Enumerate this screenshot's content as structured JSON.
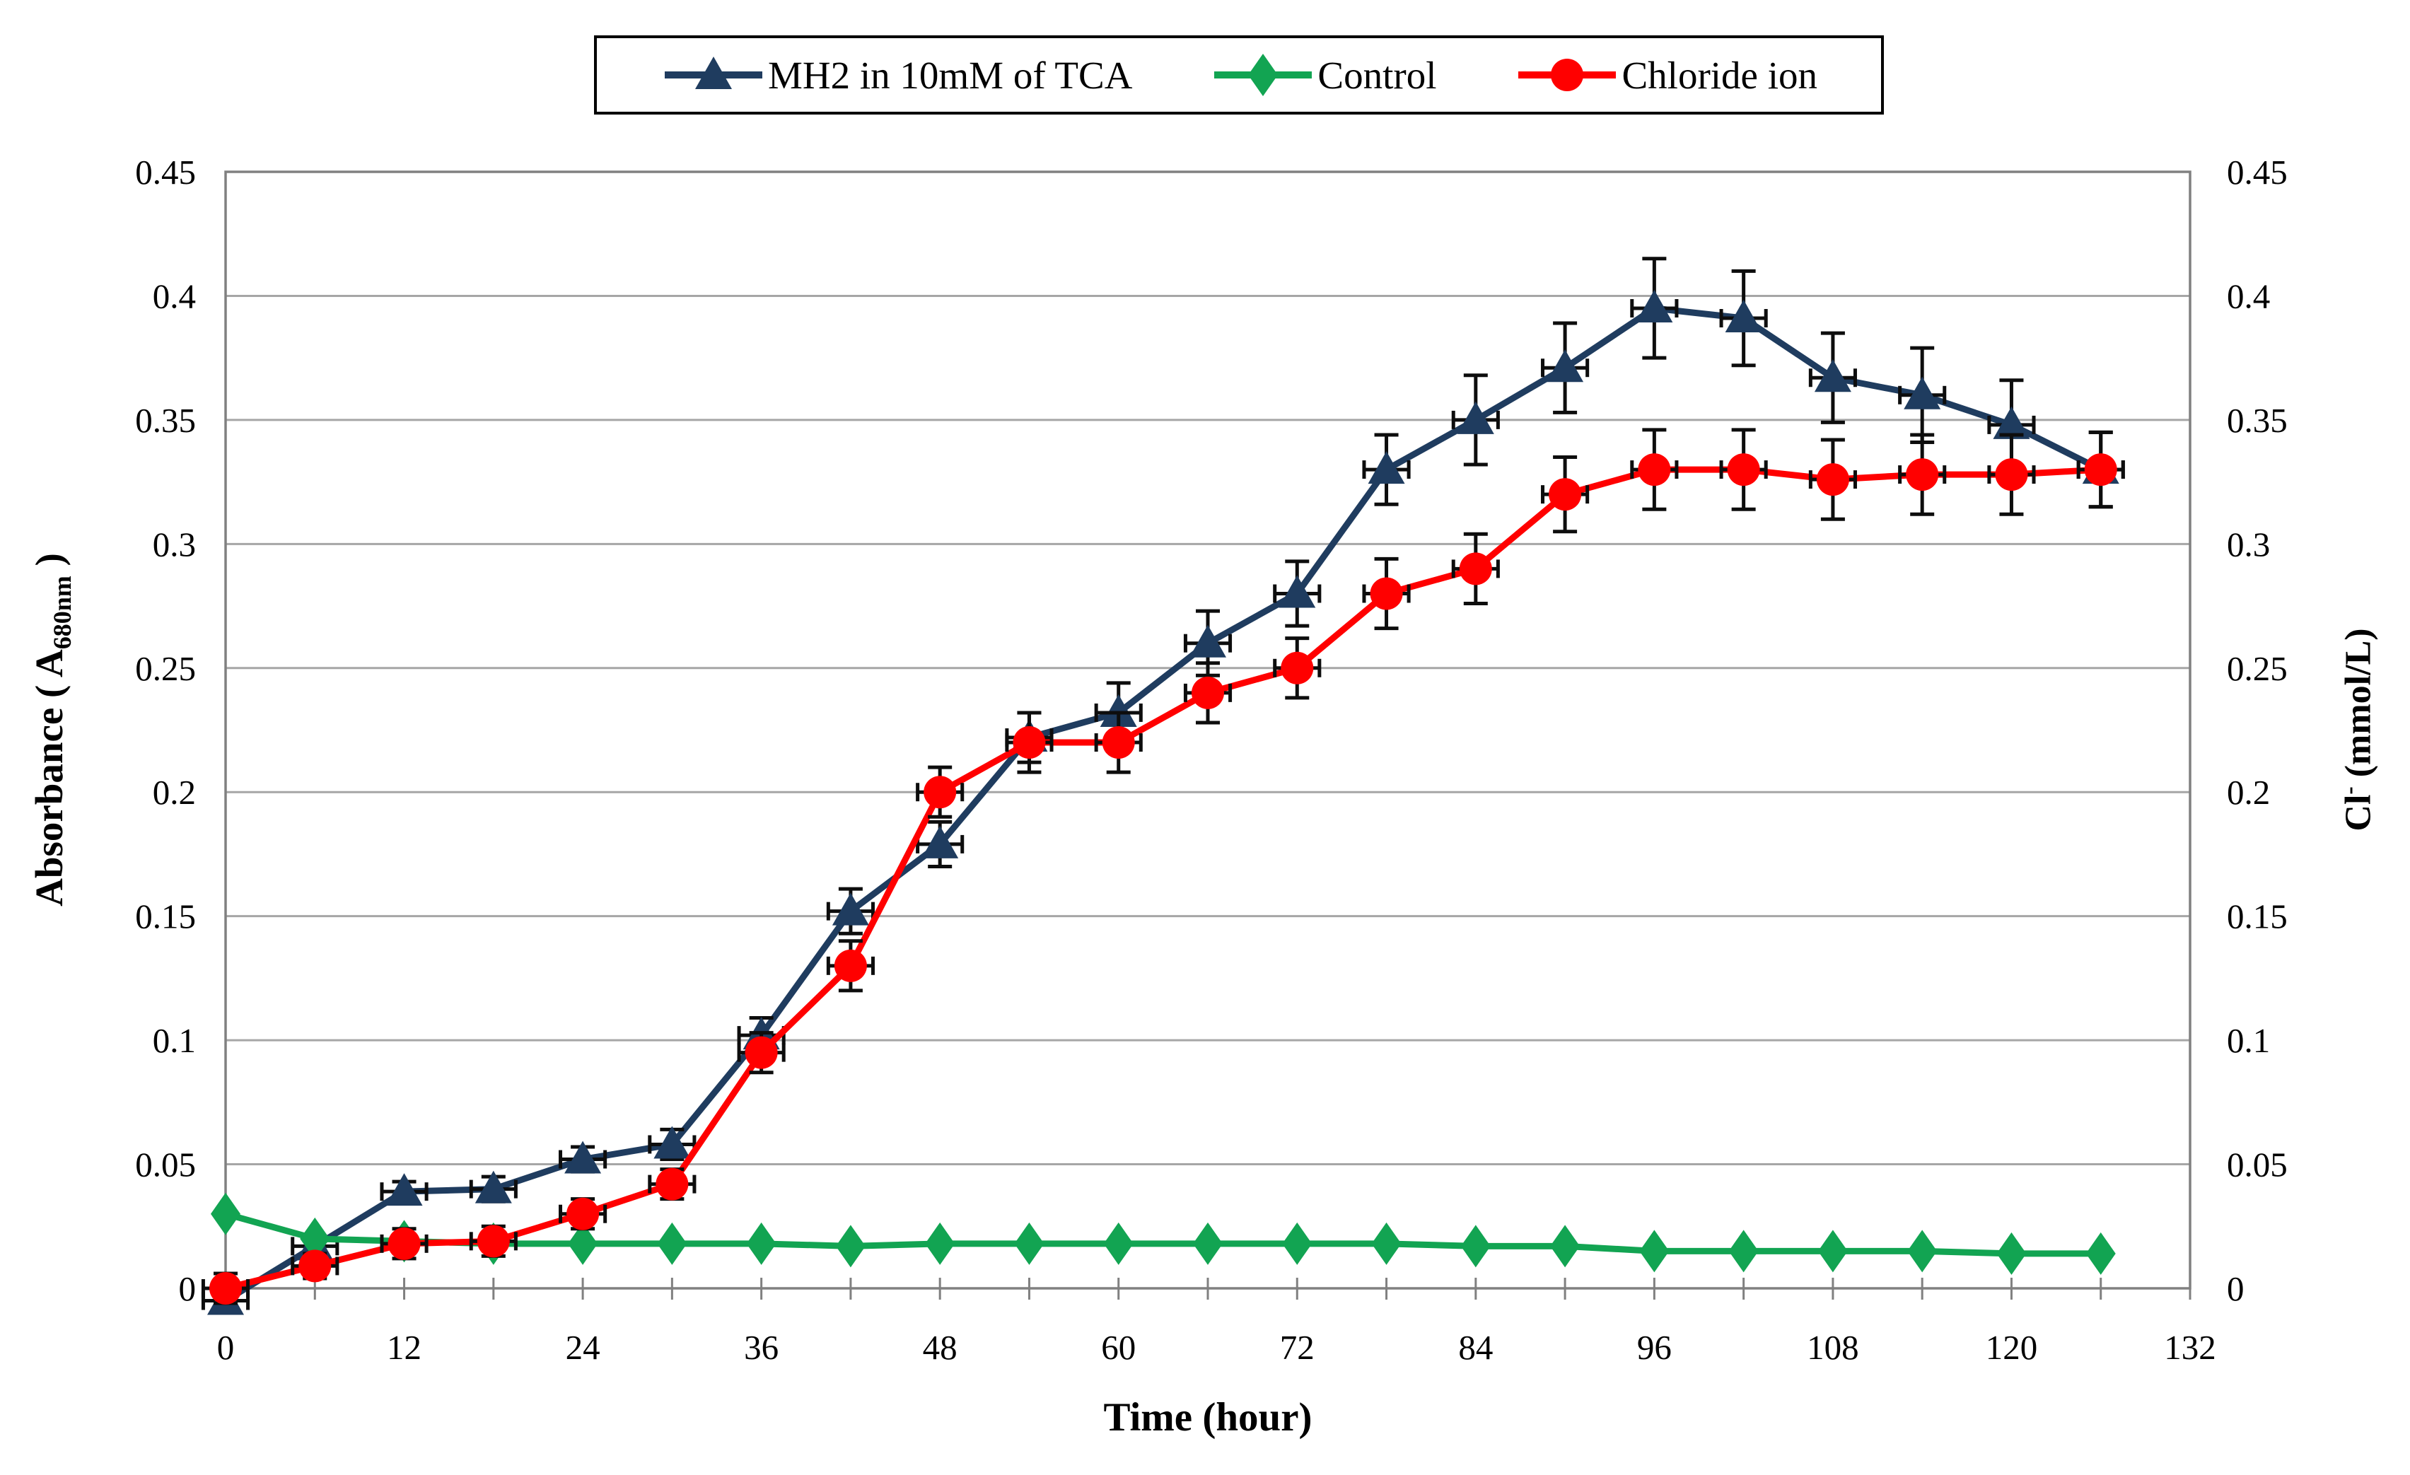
{
  "page": {
    "background": "#FFFFFF"
  },
  "chart_data": {
    "type": "line",
    "title": "",
    "xlabel": "Time (hour)",
    "ylabel_left": {
      "main": "Absorbance ( A",
      "sub": "680nm",
      "end": " )"
    },
    "ylabel_right": {
      "main": "Cl",
      "sup": "-",
      "end": " (mmol/L)"
    },
    "xlim": [
      0,
      132
    ],
    "ylim": [
      0,
      0.45
    ],
    "grid": "horizontal",
    "legend_position": "top-center",
    "x_ticks": [
      0,
      12,
      24,
      36,
      48,
      60,
      72,
      84,
      96,
      108,
      120,
      132
    ],
    "x_tick_labels": [
      "0",
      "12",
      "24",
      "36",
      "48",
      "60",
      "72",
      "84",
      "96",
      "108",
      "120",
      "132"
    ],
    "x_minor_tick_step": 6,
    "y_ticks": [
      0,
      0.05,
      0.1,
      0.15,
      0.2,
      0.25,
      0.3,
      0.35,
      0.4,
      0.45
    ],
    "y_tick_labels": [
      "0",
      "0.05",
      "0.1",
      "0.15",
      "0.2",
      "0.25",
      "0.3",
      "0.35",
      "0.4",
      "0.45"
    ],
    "x": [
      0,
      6,
      12,
      18,
      24,
      30,
      36,
      42,
      48,
      54,
      60,
      66,
      72,
      78,
      84,
      90,
      96,
      102,
      108,
      114,
      120,
      126
    ],
    "series": [
      {
        "name": "MH2 in 10mM of TCA",
        "color": "#1F3C5F",
        "marker": "triangle",
        "axis": "left",
        "values": [
          -0.005,
          0.017,
          0.039,
          0.04,
          0.052,
          0.058,
          0.102,
          0.152,
          0.179,
          0.222,
          0.232,
          0.26,
          0.28,
          0.33,
          0.35,
          0.371,
          0.395,
          0.391,
          0.367,
          0.36,
          0.348,
          0.33
        ],
        "errors": [
          0.004,
          0.004,
          0.004,
          0.005,
          0.005,
          0.006,
          0.007,
          0.009,
          0.009,
          0.01,
          0.012,
          0.013,
          0.013,
          0.014,
          0.018,
          0.018,
          0.02,
          0.019,
          0.018,
          0.019,
          0.018,
          0.015
        ],
        "x_error": 1.5
      },
      {
        "name": "Control",
        "color": "#12A452",
        "marker": "diamond",
        "axis": "left",
        "values": [
          0.03,
          0.02,
          0.019,
          0.018,
          0.018,
          0.018,
          0.018,
          0.017,
          0.018,
          0.018,
          0.018,
          0.018,
          0.018,
          0.018,
          0.017,
          0.017,
          0.015,
          0.015,
          0.015,
          0.015,
          0.014,
          0.014
        ]
      },
      {
        "name": "Chloride ion",
        "color": "#FF0000",
        "marker": "circle",
        "axis": "right",
        "values": [
          0.0,
          0.009,
          0.018,
          0.019,
          0.03,
          0.042,
          0.095,
          0.13,
          0.2,
          0.22,
          0.22,
          0.24,
          0.25,
          0.28,
          0.29,
          0.32,
          0.33,
          0.33,
          0.326,
          0.328,
          0.328,
          0.33
        ],
        "errors": [
          0.006,
          0.005,
          0.006,
          0.006,
          0.006,
          0.006,
          0.008,
          0.01,
          0.01,
          0.012,
          0.012,
          0.012,
          0.012,
          0.014,
          0.014,
          0.015,
          0.016,
          0.016,
          0.016,
          0.016,
          0.016,
          0.015
        ],
        "x_error": 1.5
      }
    ],
    "colors": {
      "gridline": "#A6A6A6",
      "axis": "#808080",
      "error_bar": "#0D0D0D",
      "text": "#000000"
    }
  }
}
